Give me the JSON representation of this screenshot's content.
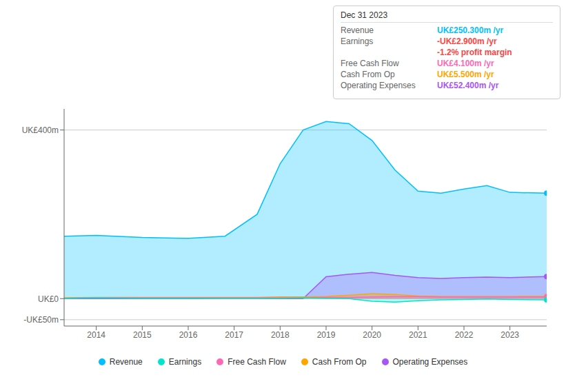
{
  "chart_data": {
    "type": "area",
    "x": [
      2013.3,
      2014.0,
      2015.0,
      2016.0,
      2016.8,
      2017.5,
      2018.0,
      2018.5,
      2019.0,
      2019.5,
      2020.0,
      2020.5,
      2021.0,
      2021.5,
      2022.0,
      2022.5,
      2023.0,
      2023.8
    ],
    "series": [
      {
        "name": "Revenue",
        "color": "#00bfff",
        "values": [
          148,
          150,
          145,
          143,
          148,
          200,
          320,
          400,
          420,
          415,
          375,
          305,
          255,
          250,
          260,
          268,
          252,
          250
        ]
      },
      {
        "name": "Earnings",
        "color": "#00e5cc",
        "values": [
          1,
          2,
          1,
          1,
          0,
          0,
          1,
          2,
          1,
          0,
          -6,
          -8,
          -5,
          -3,
          -2,
          -1,
          -2,
          -2.9
        ]
      },
      {
        "name": "Free Cash Flow",
        "color": "#ff69b4",
        "values": [
          1,
          2,
          2,
          2,
          2,
          2,
          2,
          2,
          3,
          3,
          4,
          5,
          5,
          4,
          4,
          4,
          4,
          4.1
        ]
      },
      {
        "name": "Cash From Op",
        "color": "#ffa500",
        "values": [
          2,
          3,
          3,
          3,
          3,
          3,
          4,
          4,
          5,
          8,
          12,
          10,
          6,
          5,
          5,
          5,
          5,
          5.5
        ]
      },
      {
        "name": "Operating Expenses",
        "color": "#a855f7",
        "values": [
          0,
          0,
          0,
          0,
          0,
          0,
          0,
          0,
          52,
          58,
          62,
          55,
          50,
          48,
          50,
          51,
          50,
          52.4
        ]
      }
    ],
    "xlim": [
      2013.3,
      2023.8
    ],
    "xticks": [
      2014,
      2015,
      2016,
      2017,
      2018,
      2019,
      2020,
      2021,
      2022,
      2023
    ],
    "ylim": [
      -65,
      450
    ],
    "yticks": [
      {
        "value": 400,
        "label": "UK£400m"
      },
      {
        "value": 0,
        "label": "UK£0"
      },
      {
        "value": -50,
        "label": "-UK£50m"
      }
    ],
    "grid": true,
    "annotations": {
      "title": "Dec 31 2023",
      "rows": [
        {
          "label": "Revenue",
          "value": "UK£250.300m /yr",
          "color": "#00bfff"
        },
        {
          "label": "Earnings",
          "value": "-UK£2.900m /yr",
          "color": "#ff4444"
        },
        {
          "value": "-1.2% profit margin",
          "color": "#ff4444"
        },
        {
          "label": "Free Cash Flow",
          "value": "UK£4.100m /yr",
          "color": "#ff69b4"
        },
        {
          "label": "Cash From Op",
          "value": "UK£5.500m /yr",
          "color": "#ffa500"
        },
        {
          "label": "Operating Expenses",
          "value": "UK£52.400m /yr",
          "color": "#a855f7"
        }
      ]
    }
  }
}
